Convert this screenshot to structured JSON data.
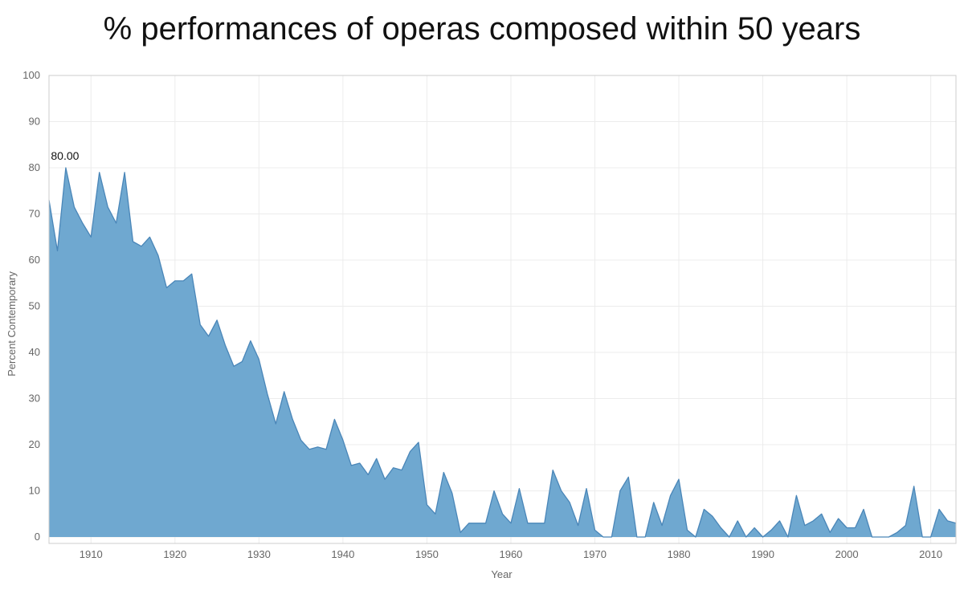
{
  "chart_data": {
    "type": "area",
    "title": "% performances of operas composed within 50 years",
    "xlabel": "Year",
    "ylabel": "Percent Contemporary",
    "xlim": [
      1905,
      2013
    ],
    "ylim": [
      0,
      100
    ],
    "x_ticks": [
      1910,
      1920,
      1930,
      1940,
      1950,
      1960,
      1970,
      1980,
      1990,
      2000,
      2010
    ],
    "y_ticks": [
      0,
      10,
      20,
      30,
      40,
      50,
      60,
      70,
      80,
      90,
      100
    ],
    "grid": true,
    "color": "#6fa8d0",
    "line_color": "#4a86b8",
    "annotation": {
      "text": "80.00",
      "x": 1907,
      "y": 80.0
    },
    "series": [
      {
        "x": [
          1905,
          1906,
          1907,
          1908,
          1909,
          1910,
          1911,
          1912,
          1913,
          1914,
          1915,
          1916,
          1917,
          1918,
          1919,
          1920,
          1921,
          1922,
          1923,
          1924,
          1925,
          1926,
          1927,
          1928,
          1929,
          1930,
          1931,
          1932,
          1933,
          1934,
          1935,
          1936,
          1937,
          1938,
          1939,
          1940,
          1941,
          1942,
          1943,
          1944,
          1945,
          1946,
          1947,
          1948,
          1949,
          1950,
          1951,
          1952,
          1953,
          1954,
          1955,
          1956,
          1957,
          1958,
          1959,
          1960,
          1961,
          1962,
          1963,
          1964,
          1965,
          1966,
          1967,
          1968,
          1969,
          1970,
          1971,
          1972,
          1973,
          1974,
          1975,
          1976,
          1977,
          1978,
          1979,
          1980,
          1981,
          1982,
          1983,
          1984,
          1985,
          1986,
          1987,
          1988,
          1989,
          1990,
          1991,
          1992,
          1993,
          1994,
          1995,
          1996,
          1997,
          1998,
          1999,
          2000,
          2001,
          2002,
          2003,
          2004,
          2005,
          2006,
          2007,
          2008,
          2009,
          2010,
          2011,
          2012,
          2013
        ],
        "values": [
          73,
          62,
          80,
          71.5,
          68,
          65,
          79,
          71.5,
          68,
          79,
          64,
          63,
          65,
          61,
          54,
          55.5,
          55.5,
          57,
          46,
          43.5,
          47,
          41.5,
          37,
          38,
          42.5,
          38.5,
          31,
          24.5,
          31.5,
          25.5,
          21,
          19,
          19.5,
          19,
          25.5,
          21,
          15.5,
          16,
          13.5,
          17,
          12.5,
          15,
          14.5,
          18.5,
          20.5,
          7,
          5,
          14,
          9.5,
          1,
          3,
          3,
          3,
          10,
          5,
          3,
          10.5,
          3,
          3,
          3,
          14.5,
          10,
          7.5,
          2.5,
          10.5,
          1.5,
          0,
          0,
          10,
          13,
          0,
          0,
          7.5,
          2.5,
          9,
          12.5,
          1.5,
          0,
          6,
          4.5,
          2,
          0,
          3.5,
          0,
          2,
          0,
          1.5,
          3.5,
          0,
          9,
          2.5,
          3.5,
          5,
          1,
          4,
          2,
          2,
          6,
          0,
          0,
          0,
          1,
          2.5,
          11,
          0,
          0,
          6,
          3.5,
          3
        ]
      }
    ]
  }
}
